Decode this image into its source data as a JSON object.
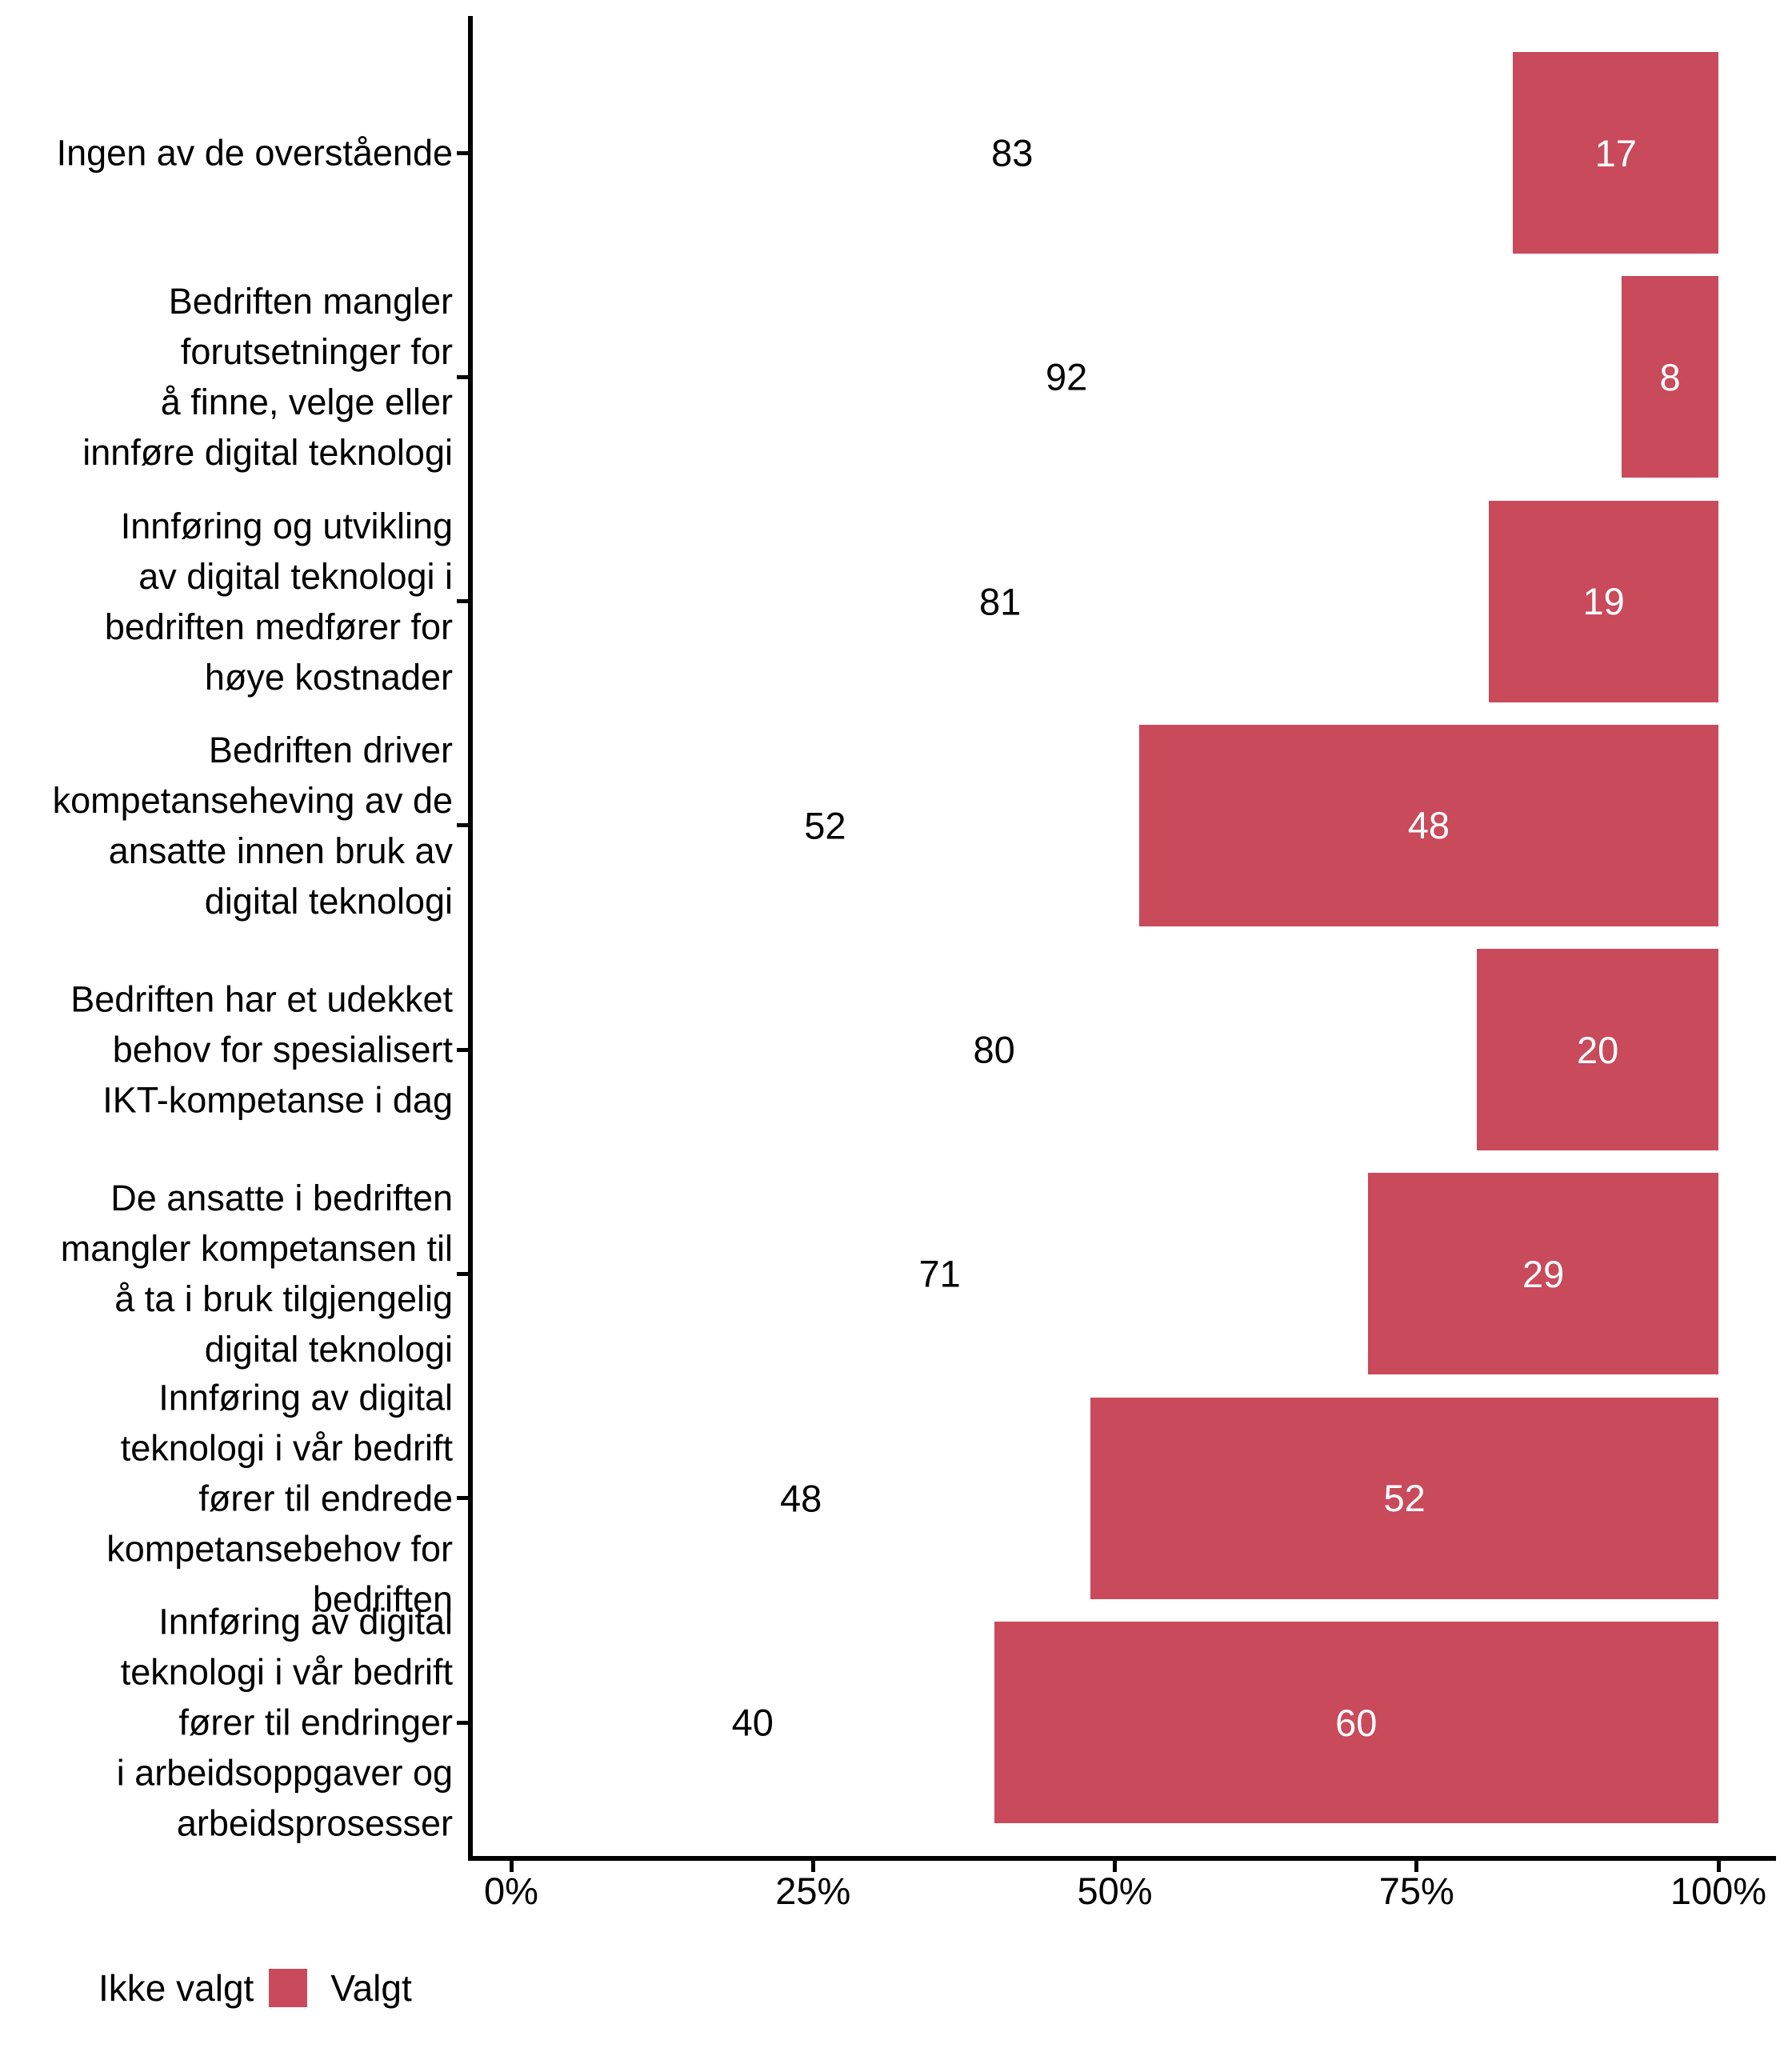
{
  "chart_data": {
    "type": "bar",
    "orientation": "horizontal",
    "stacked": true,
    "title": "",
    "xlabel": "",
    "ylabel": "",
    "categories": [
      "Ingen av de overstående",
      "Bedriften mangler\nforutsetninger for\nå finne, velge eller\ninnføre digital teknologi",
      "Innføring og utvikling\nav digital teknologi i\nbedriften medfører for\nhøye kostnader",
      "Bedriften driver\nkompetanseheving av de\nansatte innen bruk av\ndigital teknologi",
      "Bedriften har et udekket\nbehov for spesialisert\nIKT-kompetanse i dag",
      "De ansatte i bedriften\nmangler kompetansen til\nå ta i bruk tilgjengelig\ndigital teknologi",
      "Innføring av digital\nteknologi i vår bedrift\nfører til endrede\nkompetansebehov for\nbedriften",
      "Innføring av digital\nteknologi i vår bedrift\nfører til endringer\ni arbeidsoppgaver og\narbeidsprosesser"
    ],
    "series": [
      {
        "name": "Ikke valgt",
        "color": "#ffffff",
        "label_color": "#000000",
        "values": [
          83,
          92,
          81,
          52,
          80,
          71,
          48,
          40
        ]
      },
      {
        "name": "Valgt",
        "color": "#c84a5b",
        "label_color": "#ffffff",
        "values": [
          17,
          8,
          19,
          48,
          20,
          29,
          52,
          60
        ]
      }
    ],
    "x_axis": {
      "range": [
        0,
        100
      ],
      "tick_values": [
        0,
        25,
        50,
        75,
        100
      ],
      "tick_labels": [
        "0%",
        "25%",
        "50%",
        "75%",
        "100%"
      ]
    },
    "legend": {
      "position": "bottom-left",
      "items": [
        {
          "label": "Ikke valgt",
          "color": "#ffffff"
        },
        {
          "label": "Valgt",
          "color": "#c84a5b"
        }
      ]
    },
    "colors": {
      "axis": "#000000",
      "text": "#000000",
      "background": "#ffffff"
    },
    "grid": "off"
  }
}
